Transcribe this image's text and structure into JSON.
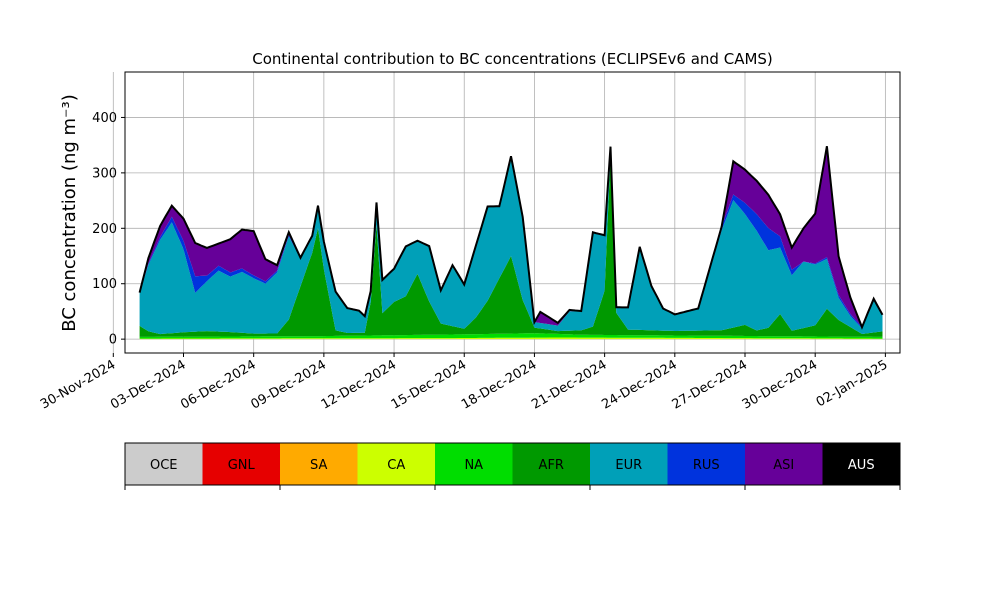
{
  "chart_data": [
    {
      "type": "area",
      "title": "Continental contribution to BC concentrations (ECLIPSEv6 and CAMS)",
      "ylabel": "BC concentration (ng m⁻³)",
      "xlabel": "",
      "grid": true,
      "ylim": [
        -25,
        482
      ],
      "xlim": [
        "2024-11-30T12:00",
        "2025-01-02T15:00"
      ],
      "x_ticks": [
        "30-Nov-2024",
        "03-Dec-2024",
        "06-Dec-2024",
        "09-Dec-2024",
        "12-Dec-2024",
        "15-Dec-2024",
        "18-Dec-2024",
        "21-Dec-2024",
        "24-Dec-2024",
        "27-Dec-2024",
        "30-Dec-2024",
        "02-Jan-2025"
      ],
      "y_ticks": [
        0,
        100,
        200,
        300,
        400
      ],
      "stack_order": [
        "OCE",
        "GNL",
        "SA",
        "CA",
        "NA",
        "AFR",
        "EUR",
        "RUS",
        "ASI",
        "AUS"
      ],
      "total_line_color": "#000000",
      "series": [
        {
          "name": "OCE",
          "color": "#cccccc",
          "points": [
            [
              "2024-12-01T03",
              0
            ],
            [
              "2025-01-01T21",
              0
            ]
          ]
        },
        {
          "name": "GNL",
          "color": "#e60000",
          "points": [
            [
              "2024-12-01T03",
              0
            ],
            [
              "2025-01-01T21",
              0
            ]
          ]
        },
        {
          "name": "SA",
          "color": "#ffaa00",
          "points": [
            [
              "2024-12-01T03",
              0
            ],
            [
              "2025-01-01T21",
              0
            ]
          ]
        },
        {
          "name": "CA",
          "color": "#ccff00",
          "points": [
            [
              "2024-12-01T03",
              1
            ],
            [
              "2024-12-15T00",
              2
            ],
            [
              "2024-12-19T00",
              3
            ],
            [
              "2025-01-01T21",
              1
            ]
          ]
        },
        {
          "name": "NA",
          "color": "#00dd00",
          "points": [
            [
              "2024-12-01T03",
              3
            ],
            [
              "2024-12-09T00",
              4
            ],
            [
              "2024-12-18T00",
              8
            ],
            [
              "2024-12-20T00",
              5
            ],
            [
              "2025-01-01T21",
              3
            ]
          ]
        },
        {
          "name": "AFR",
          "color": "#009900",
          "points": [
            [
              "2024-12-01T03",
              20
            ],
            [
              "2024-12-01T12",
              10
            ],
            [
              "2024-12-02T00",
              5
            ],
            [
              "2024-12-03T00",
              8
            ],
            [
              "2024-12-04T00",
              10
            ],
            [
              "2024-12-05T00",
              8
            ],
            [
              "2024-12-06T00",
              5
            ],
            [
              "2024-12-07T00",
              5
            ],
            [
              "2024-12-07T12",
              30
            ],
            [
              "2024-12-08T00",
              90
            ],
            [
              "2024-12-08T12",
              150
            ],
            [
              "2024-12-08T18",
              195
            ],
            [
              "2024-12-09T00",
              120
            ],
            [
              "2024-12-09T12",
              10
            ],
            [
              "2024-12-10T00",
              5
            ],
            [
              "2024-12-10T18",
              5
            ],
            [
              "2024-12-11T00",
              60
            ],
            [
              "2024-12-11T06",
              200
            ],
            [
              "2024-12-11T12",
              40
            ],
            [
              "2024-12-12T00",
              60
            ],
            [
              "2024-12-12T12",
              70
            ],
            [
              "2024-12-13T00",
              110
            ],
            [
              "2024-12-13T12",
              60
            ],
            [
              "2024-12-14T00",
              20
            ],
            [
              "2024-12-15T00",
              10
            ],
            [
              "2024-12-15T12",
              30
            ],
            [
              "2024-12-16T00",
              60
            ],
            [
              "2024-12-16T12",
              100
            ],
            [
              "2024-12-17T00",
              140
            ],
            [
              "2024-12-17T12",
              60
            ],
            [
              "2024-12-18T00",
              10
            ],
            [
              "2024-12-19T00",
              5
            ],
            [
              "2024-12-20T00",
              8
            ],
            [
              "2024-12-20T12",
              15
            ],
            [
              "2024-12-21T00",
              80
            ],
            [
              "2024-12-21T06",
              320
            ],
            [
              "2024-12-21T12",
              40
            ],
            [
              "2024-12-22T00",
              10
            ],
            [
              "2024-12-24T00",
              8
            ],
            [
              "2024-12-26T00",
              10
            ],
            [
              "2024-12-27T00",
              20
            ],
            [
              "2024-12-27T12",
              10
            ],
            [
              "2024-12-28T00",
              15
            ],
            [
              "2024-12-28T12",
              40
            ],
            [
              "2024-12-29T00",
              10
            ],
            [
              "2024-12-30T00",
              20
            ],
            [
              "2024-12-30T12",
              50
            ],
            [
              "2024-12-31T00",
              30
            ],
            [
              "2025-01-01T00",
              5
            ],
            [
              "2025-01-01T21",
              10
            ]
          ]
        },
        {
          "name": "EUR",
          "color": "#00a0b8",
          "points": [
            [
              "2024-12-01T03",
              60
            ],
            [
              "2024-12-01T12",
              120
            ],
            [
              "2024-12-02T00",
              170
            ],
            [
              "2024-12-02T12",
              200
            ],
            [
              "2024-12-03T00",
              150
            ],
            [
              "2024-12-03T06",
              110
            ],
            [
              "2024-12-03T12",
              70
            ],
            [
              "2024-12-04T00",
              90
            ],
            [
              "2024-12-04T12",
              110
            ],
            [
              "2024-12-05T00",
              100
            ],
            [
              "2024-12-05T12",
              110
            ],
            [
              "2024-12-06T00",
              100
            ],
            [
              "2024-12-06T12",
              90
            ],
            [
              "2024-12-07T00",
              110
            ],
            [
              "2024-12-07T12",
              150
            ],
            [
              "2024-12-08T00",
              50
            ],
            [
              "2024-12-08T12",
              30
            ],
            [
              "2024-12-09T00",
              50
            ],
            [
              "2024-12-09T12",
              70
            ],
            [
              "2024-12-10T00",
              45
            ],
            [
              "2024-12-10T12",
              40
            ],
            [
              "2024-12-11T00",
              20
            ],
            [
              "2024-12-11T12",
              60
            ],
            [
              "2024-12-12T00",
              60
            ],
            [
              "2024-12-12T12",
              90
            ],
            [
              "2024-12-13T00",
              60
            ],
            [
              "2024-12-13T12",
              100
            ],
            [
              "2024-12-14T00",
              60
            ],
            [
              "2024-12-14T12",
              110
            ],
            [
              "2024-12-15T00",
              80
            ],
            [
              "2024-12-15T12",
              130
            ],
            [
              "2024-12-16T00",
              170
            ],
            [
              "2024-12-16T12",
              130
            ],
            [
              "2024-12-17T00",
              180
            ],
            [
              "2024-12-17T12",
              150
            ],
            [
              "2024-12-18T00",
              10
            ],
            [
              "2024-12-19T00",
              10
            ],
            [
              "2024-12-19T12",
              35
            ],
            [
              "2024-12-20T00",
              35
            ],
            [
              "2024-12-20T12",
              170
            ],
            [
              "2024-12-21T00",
              100
            ],
            [
              "2024-12-21T06",
              20
            ],
            [
              "2024-12-21T12",
              10
            ],
            [
              "2024-12-22T00",
              40
            ],
            [
              "2024-12-22T12",
              150
            ],
            [
              "2024-12-23T00",
              80
            ],
            [
              "2024-12-23T12",
              40
            ],
            [
              "2024-12-24T00",
              30
            ],
            [
              "2024-12-25T00",
              40
            ],
            [
              "2024-12-26T00",
              180
            ],
            [
              "2024-12-26T12",
              230
            ],
            [
              "2024-12-27T00",
              200
            ],
            [
              "2024-12-27T12",
              180
            ],
            [
              "2024-12-28T00",
              140
            ],
            [
              "2024-12-28T12",
              120
            ],
            [
              "2024-12-29T00",
              100
            ],
            [
              "2024-12-29T12",
              120
            ],
            [
              "2024-12-30T00",
              110
            ],
            [
              "2024-12-30T12",
              90
            ],
            [
              "2024-12-31T00",
              40
            ],
            [
              "2024-12-31T12",
              20
            ],
            [
              "2025-01-01T00",
              10
            ],
            [
              "2025-01-01T12",
              60
            ],
            [
              "2025-01-01T21",
              30
            ]
          ]
        },
        {
          "name": "RUS",
          "color": "#0033dd",
          "points": [
            [
              "2024-12-01T03",
              0
            ],
            [
              "2024-12-02T00",
              5
            ],
            [
              "2024-12-03T00",
              15
            ],
            [
              "2024-12-03T12",
              30
            ],
            [
              "2024-12-04T00",
              10
            ],
            [
              "2024-12-06T00",
              5
            ],
            [
              "2024-12-09T00",
              0
            ],
            [
              "2024-12-25T00",
              0
            ],
            [
              "2024-12-26T12",
              10
            ],
            [
              "2024-12-27T12",
              30
            ],
            [
              "2024-12-28T00",
              40
            ],
            [
              "2024-12-28T12",
              20
            ],
            [
              "2024-12-29T12",
              0
            ],
            [
              "2024-12-31T00",
              5
            ],
            [
              "2025-01-01T21",
              0
            ]
          ]
        },
        {
          "name": "ASI",
          "color": "#660099",
          "points": [
            [
              "2024-12-01T03",
              0
            ],
            [
              "2024-12-01T12",
              10
            ],
            [
              "2024-12-02T00",
              20
            ],
            [
              "2024-12-02T12",
              20
            ],
            [
              "2024-12-03T00",
              40
            ],
            [
              "2024-12-03T12",
              60
            ],
            [
              "2024-12-04T00",
              50
            ],
            [
              "2024-12-04T12",
              40
            ],
            [
              "2024-12-05T00",
              60
            ],
            [
              "2024-12-05T12",
              70
            ],
            [
              "2024-12-06T00",
              80
            ],
            [
              "2024-12-06T12",
              40
            ],
            [
              "2024-12-07T00",
              10
            ],
            [
              "2024-12-08T00",
              0
            ],
            [
              "2024-12-18T00",
              0
            ],
            [
              "2024-12-18T06",
              20
            ],
            [
              "2024-12-19T00",
              5
            ],
            [
              "2024-12-20T00",
              0
            ],
            [
              "2024-12-26T00",
              0
            ],
            [
              "2024-12-26T12",
              60
            ],
            [
              "2024-12-27T00",
              60
            ],
            [
              "2024-12-27T12",
              60
            ],
            [
              "2024-12-28T00",
              60
            ],
            [
              "2024-12-28T12",
              40
            ],
            [
              "2024-12-29T00",
              40
            ],
            [
              "2024-12-29T12",
              60
            ],
            [
              "2024-12-30T00",
              90
            ],
            [
              "2024-12-30T12",
              200
            ],
            [
              "2024-12-31T00",
              70
            ],
            [
              "2024-12-31T12",
              30
            ],
            [
              "2025-01-01T00",
              0
            ],
            [
              "2025-01-01T21",
              0
            ]
          ]
        },
        {
          "name": "AUS",
          "color": "#000000",
          "points": [
            [
              "2024-12-01T03",
              0
            ],
            [
              "2025-01-01T21",
              0
            ]
          ]
        }
      ]
    },
    {
      "type": "legend-colorbar",
      "entries": [
        {
          "label": "OCE",
          "color": "#cccccc"
        },
        {
          "label": "GNL",
          "color": "#e60000"
        },
        {
          "label": "SA",
          "color": "#ffaa00"
        },
        {
          "label": "CA",
          "color": "#ccff00"
        },
        {
          "label": "NA",
          "color": "#00dd00"
        },
        {
          "label": "AFR",
          "color": "#009900"
        },
        {
          "label": "EUR",
          "color": "#00a0b8"
        },
        {
          "label": "RUS",
          "color": "#0033dd"
        },
        {
          "label": "ASI",
          "color": "#660099"
        },
        {
          "label": "AUS",
          "color": "#000000"
        }
      ],
      "label_color_on_dark": "#ffffff",
      "label_color_default": "#000000"
    }
  ]
}
